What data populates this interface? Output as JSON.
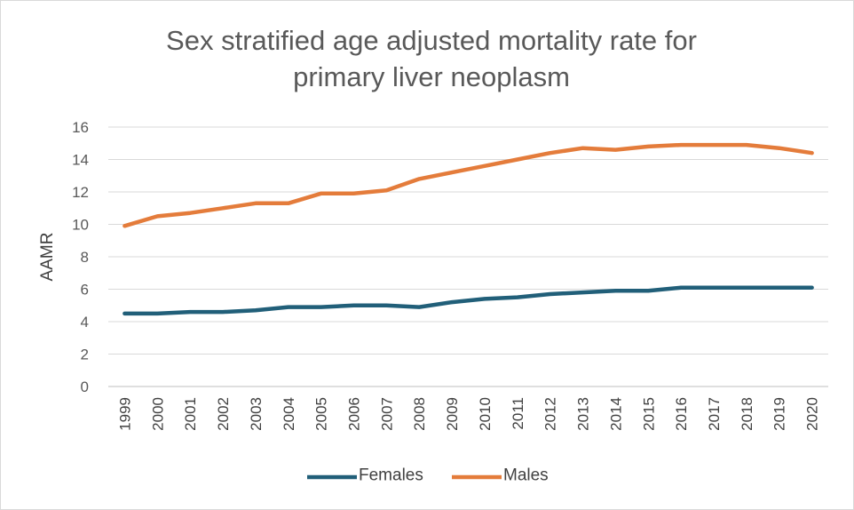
{
  "chart_data": {
    "type": "line",
    "title_lines": [
      "Sex stratified age adjusted mortality rate for",
      "primary liver neoplasm"
    ],
    "xlabel": "",
    "ylabel": "AAMR",
    "ylim": [
      0,
      16
    ],
    "yticks": [
      0,
      2,
      4,
      6,
      8,
      10,
      12,
      14,
      16
    ],
    "grid": true,
    "legend_position": "bottom",
    "categories": [
      "1999",
      "2000",
      "2001",
      "2002",
      "2003",
      "2004",
      "2005",
      "2006",
      "2007",
      "2008",
      "2009",
      "2010",
      "2011",
      "2012",
      "2013",
      "2014",
      "2015",
      "2016",
      "2017",
      "2018",
      "2019",
      "2020"
    ],
    "series": [
      {
        "name": "Females",
        "color": "#215f79",
        "values": [
          4.5,
          4.5,
          4.6,
          4.6,
          4.7,
          4.9,
          4.9,
          5.0,
          5.0,
          4.9,
          5.2,
          5.4,
          5.5,
          5.7,
          5.8,
          5.9,
          5.9,
          6.1,
          6.1,
          6.1,
          6.1,
          6.1
        ]
      },
      {
        "name": "Males",
        "color": "#e47c3b",
        "values": [
          9.9,
          10.5,
          10.7,
          11.0,
          11.3,
          11.3,
          11.9,
          11.9,
          12.1,
          12.8,
          13.2,
          13.6,
          14.0,
          14.4,
          14.7,
          14.6,
          14.8,
          14.9,
          14.9,
          14.9,
          14.7,
          14.4
        ]
      }
    ]
  }
}
